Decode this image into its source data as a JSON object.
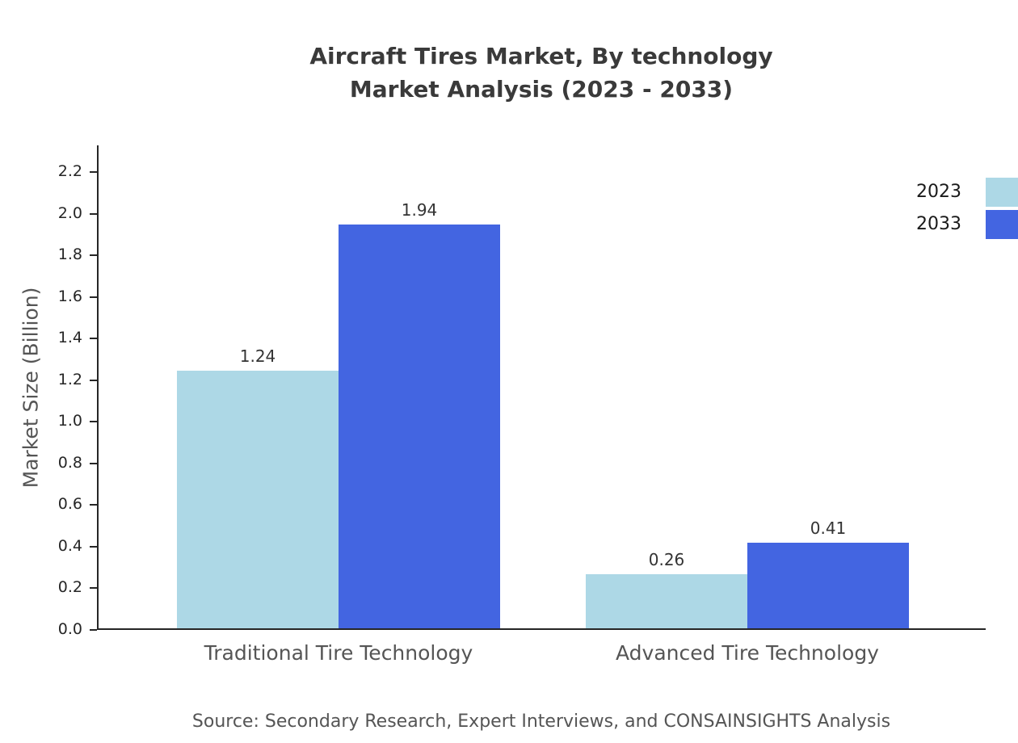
{
  "title": {
    "line1": "Aircraft Tires Market, By technology",
    "line2": "Market Analysis (2023 - 2033)"
  },
  "source": "Source: Secondary Research, Expert Interviews, and CONSAINSIGHTS Analysis",
  "chart_data": {
    "type": "bar",
    "title": "Aircraft Tires Market, By technology — Market Analysis (2023 - 2033)",
    "categories": [
      "Traditional Tire Technology",
      "Advanced Tire Technology"
    ],
    "series": [
      {
        "name": "2023",
        "color": "#add8e6",
        "values": [
          1.24,
          0.26
        ]
      },
      {
        "name": "2033",
        "color": "#4365e1",
        "values": [
          1.94,
          0.41
        ]
      }
    ],
    "xlabel": "",
    "ylabel": "Market Size (Billion)",
    "ylim": [
      0,
      2.33
    ],
    "yticks": [
      0.0,
      0.2,
      0.4,
      0.6,
      0.8,
      1.0,
      1.2,
      1.4,
      1.6,
      1.8,
      2.0,
      2.2
    ],
    "grid": false,
    "legend_position": "top-right",
    "value_labels": true
  }
}
